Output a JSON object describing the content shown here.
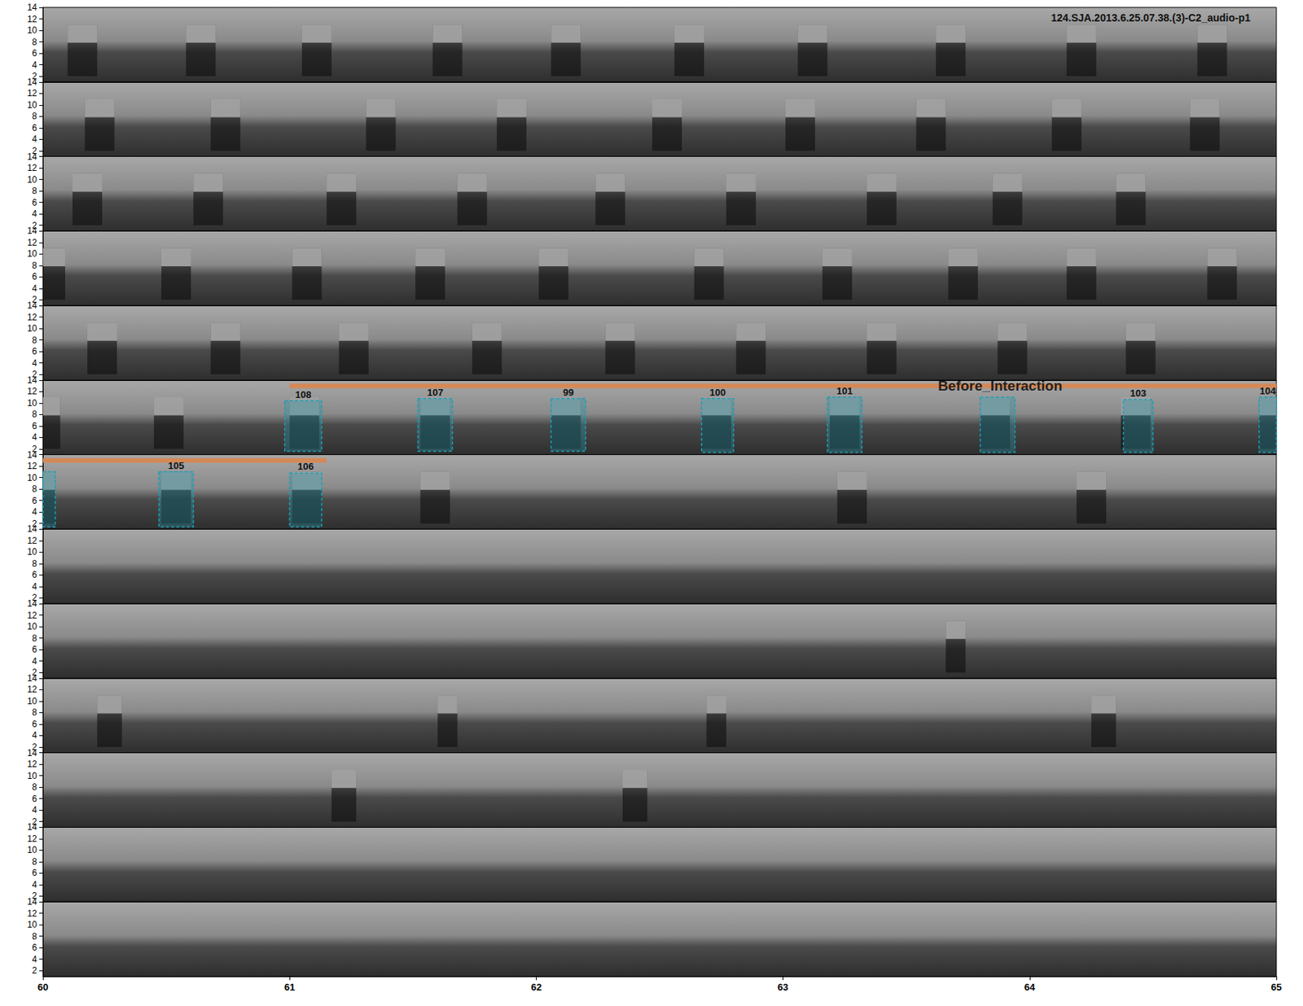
{
  "chart_data": {
    "type": "spectrogram",
    "title": "124.SJA.2013.6.25.07.38.(3)-C2_audio-p1",
    "xlim": [
      60,
      65
    ],
    "xticks": [
      60,
      61,
      62,
      63,
      64,
      65
    ],
    "ylim": [
      1,
      14
    ],
    "yticks": [
      2,
      4,
      6,
      8,
      10,
      12,
      14
    ],
    "call_band": [
      2,
      11
    ],
    "rows": [
      {
        "calls": [
          [
            60.1,
            60.22
          ],
          [
            60.58,
            60.7
          ],
          [
            61.05,
            61.17
          ],
          [
            61.58,
            61.7
          ],
          [
            62.06,
            62.18
          ],
          [
            62.56,
            62.68
          ],
          [
            63.06,
            63.18
          ],
          [
            63.62,
            63.74
          ],
          [
            64.15,
            64.27
          ],
          [
            64.68,
            64.8
          ]
        ],
        "boxes": [],
        "bands": []
      },
      {
        "calls": [
          [
            60.17,
            60.29
          ],
          [
            60.68,
            60.8
          ],
          [
            61.31,
            61.43
          ],
          [
            61.84,
            61.96
          ],
          [
            62.47,
            62.59
          ],
          [
            63.01,
            63.13
          ],
          [
            63.54,
            63.66
          ],
          [
            64.09,
            64.21
          ],
          [
            64.65,
            64.77
          ]
        ],
        "boxes": [],
        "bands": []
      },
      {
        "calls": [
          [
            60.12,
            60.24
          ],
          [
            60.61,
            60.73
          ],
          [
            61.15,
            61.27
          ],
          [
            61.68,
            61.8
          ],
          [
            62.24,
            62.36
          ],
          [
            62.77,
            62.89
          ],
          [
            63.34,
            63.46
          ],
          [
            63.85,
            63.97
          ],
          [
            64.35,
            64.47
          ]
        ],
        "boxes": [],
        "bands": []
      },
      {
        "calls": [
          [
            60.0,
            60.09
          ],
          [
            60.48,
            60.6
          ],
          [
            61.01,
            61.13
          ],
          [
            61.51,
            61.63
          ],
          [
            62.01,
            62.13
          ],
          [
            62.64,
            62.76
          ],
          [
            63.16,
            63.28
          ],
          [
            63.67,
            63.79
          ],
          [
            64.15,
            64.27
          ],
          [
            64.72,
            64.84
          ]
        ],
        "boxes": [],
        "bands": []
      },
      {
        "calls": [
          [
            60.18,
            60.3
          ],
          [
            60.68,
            60.8
          ],
          [
            61.2,
            61.32
          ],
          [
            61.74,
            61.86
          ],
          [
            62.28,
            62.4
          ],
          [
            62.81,
            62.93
          ],
          [
            63.34,
            63.46
          ],
          [
            63.87,
            63.99
          ],
          [
            64.39,
            64.51
          ]
        ],
        "boxes": [],
        "bands": []
      },
      {
        "calls": [
          [
            60.0,
            60.07
          ],
          [
            60.45,
            60.57
          ],
          [
            61.0,
            61.12
          ],
          [
            61.53,
            61.65
          ],
          [
            62.06,
            62.18
          ],
          [
            62.67,
            62.79
          ],
          [
            63.19,
            63.31
          ],
          [
            63.8,
            63.92
          ],
          [
            64.37,
            64.49
          ],
          [
            64.93,
            65.0
          ]
        ],
        "boxes": [
          {
            "t": [
              60.98,
              61.13
            ],
            "f": [
              1.6,
              10.4
            ],
            "label": "108"
          },
          {
            "t": [
              61.52,
              61.66
            ],
            "f": [
              1.6,
              10.8
            ],
            "label": "107"
          },
          {
            "t": [
              62.06,
              62.2
            ],
            "f": [
              1.6,
              10.8
            ],
            "label": "99"
          },
          {
            "t": [
              62.67,
              62.8
            ],
            "f": [
              1.4,
              10.8
            ],
            "label": "100"
          },
          {
            "t": [
              63.18,
              63.32
            ],
            "f": [
              1.4,
              11.0
            ],
            "label": "101"
          },
          {
            "t": [
              63.8,
              63.94
            ],
            "f": [
              1.4,
              11.0
            ],
            "label": null
          },
          {
            "t": [
              64.38,
              64.5
            ],
            "f": [
              1.4,
              10.6
            ],
            "label": "103"
          },
          {
            "t": [
              64.93,
              65.0
            ],
            "f": [
              1.4,
              11.0
            ],
            "label": "104"
          }
        ],
        "bands": [
          {
            "t": [
              61.0,
              65.0
            ],
            "f": [
              12.6,
              13.4
            ],
            "label": "Before_Interaction",
            "label_x": 63.88
          }
        ]
      },
      {
        "calls": [
          [
            60.0,
            60.05
          ],
          [
            60.48,
            60.6
          ],
          [
            61.01,
            61.13
          ],
          [
            61.53,
            61.65
          ],
          [
            63.22,
            63.34
          ],
          [
            64.19,
            64.31
          ]
        ],
        "boxes": [
          {
            "t": [
              60.0,
              60.05
            ],
            "f": [
              1.4,
              11.0
            ],
            "label": null
          },
          {
            "t": [
              60.47,
              60.61
            ],
            "f": [
              1.4,
              11.0
            ],
            "label": "105"
          },
          {
            "t": [
              61.0,
              61.13
            ],
            "f": [
              1.4,
              10.8
            ],
            "label": "106"
          }
        ],
        "bands": [
          {
            "t": [
              60.0,
              61.15
            ],
            "f": [
              12.6,
              13.4
            ],
            "label": null,
            "label_x": null
          }
        ]
      },
      {
        "calls": [],
        "boxes": [],
        "bands": []
      },
      {
        "calls": [
          [
            63.66,
            63.74
          ]
        ],
        "boxes": [],
        "bands": []
      },
      {
        "calls": [
          [
            60.22,
            60.32
          ],
          [
            61.6,
            61.68
          ],
          [
            62.69,
            62.77
          ],
          [
            64.25,
            64.35
          ]
        ],
        "boxes": [],
        "bands": []
      },
      {
        "calls": [
          [
            61.17,
            61.27
          ],
          [
            62.35,
            62.45
          ]
        ],
        "boxes": [],
        "bands": []
      },
      {
        "calls": [],
        "boxes": [],
        "bands": []
      },
      {
        "calls": [],
        "boxes": [],
        "bands": []
      }
    ]
  }
}
